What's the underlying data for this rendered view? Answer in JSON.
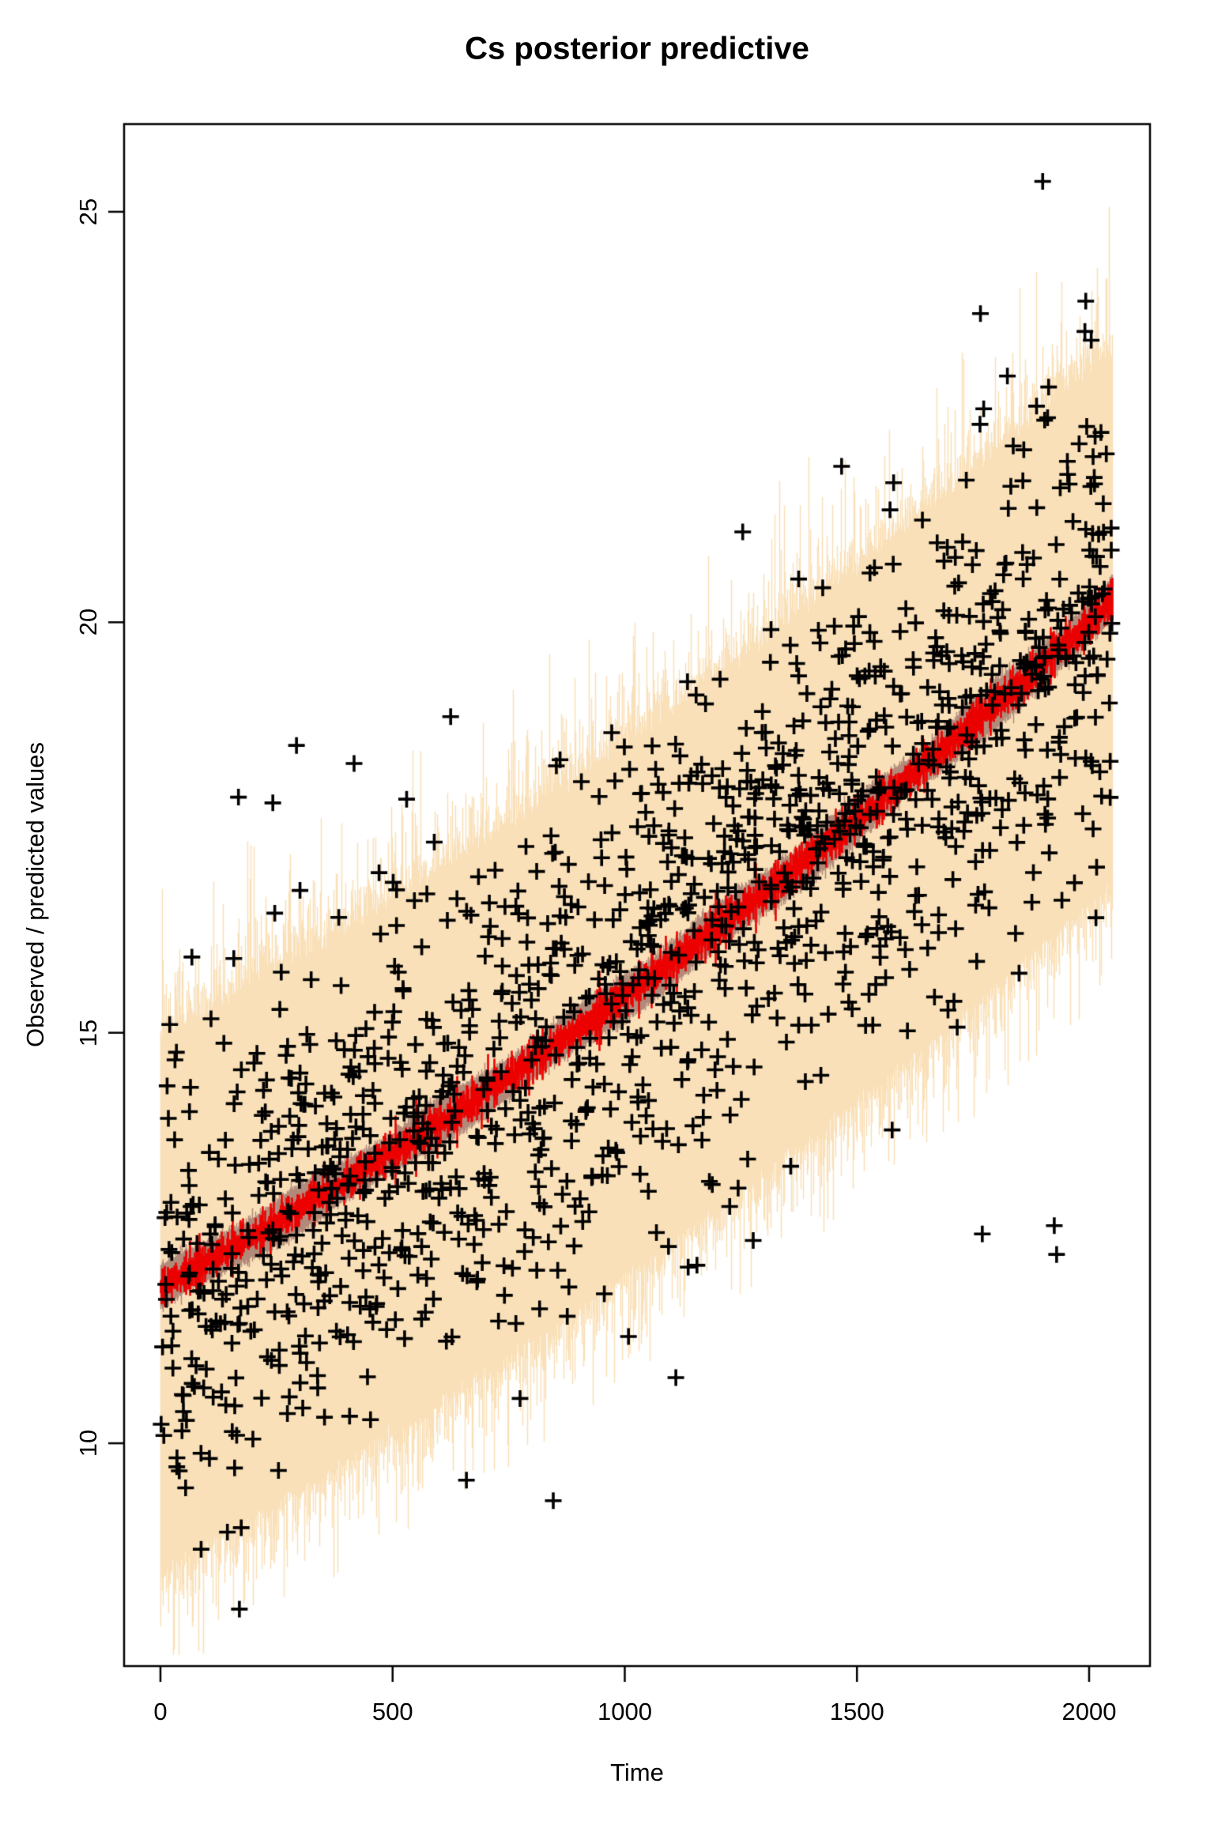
{
  "chart_data": {
    "type": "scatter",
    "title": "Cs posterior predictive",
    "xlabel": "Time",
    "ylabel": "Observed / predicted values",
    "x_ticks": [
      0,
      500,
      1000,
      1500,
      2000
    ],
    "y_ticks": [
      10,
      15,
      20,
      25
    ],
    "xlim": [
      -78.3,
      2131.1
    ],
    "ylim": [
      7.286,
      26.068
    ],
    "x_data_range": [
      0,
      2050
    ],
    "grid": false,
    "legend": null,
    "colors": {
      "background": "#FFFFFF",
      "frame": "#000000",
      "band_outer": "#F9E0B8",
      "band_inner": "#B18A7B",
      "center_line": "#EC0000",
      "marker": "#000000"
    },
    "series": [
      {
        "name": "predictive envelope min-max band",
        "type": "band",
        "color": "#F9E0B8",
        "upper_offset": 3.05,
        "lower_offset": -3.4,
        "fringe_scale": 0.3,
        "style": "vertical strands with ragged fringe"
      },
      {
        "name": "posterior sd band",
        "type": "band",
        "color": "#B18A7B",
        "halfwidth": 0.23
      },
      {
        "name": "posterior mean",
        "type": "line",
        "color": "#EC0000",
        "jitter": 0.1,
        "coef": {
          "a": 11.9,
          "b": 0.00305,
          "c": 5e-07
        },
        "points": [
          [
            0,
            11.9
          ],
          [
            250,
            12.69
          ],
          [
            500,
            13.55
          ],
          [
            750,
            14.47
          ],
          [
            1000,
            15.45
          ],
          [
            1250,
            16.49
          ],
          [
            1500,
            17.6
          ],
          [
            1750,
            18.77
          ],
          [
            2000,
            20.0
          ],
          [
            2050,
            20.25
          ]
        ]
      },
      {
        "name": "observed values",
        "type": "scatter",
        "marker": "+",
        "marker_px": 21,
        "marker_stroke_px": 3.6,
        "color": "#000000",
        "n": 1300,
        "x_range": [
          0,
          2050
        ],
        "noise_sd": 1.55,
        "seed": 77031,
        "outliers": [
          [
            1900,
            25.37
          ],
          [
            1766,
            23.76
          ],
          [
            1824,
            23.0
          ],
          [
            1773,
            22.6
          ],
          [
            1579,
            21.7
          ],
          [
            1467,
            21.9
          ],
          [
            1254,
            21.1
          ],
          [
            170,
            7.98
          ],
          [
            168,
            17.87
          ],
          [
            242,
            17.8
          ],
          [
            293,
            18.5
          ],
          [
            417,
            18.28
          ],
          [
            625,
            18.85
          ],
          [
            659,
            9.55
          ],
          [
            846,
            9.3
          ],
          [
            1008,
            11.3
          ],
          [
            1110,
            10.8
          ],
          [
            1770,
            12.55
          ],
          [
            1925,
            12.65
          ],
          [
            1930,
            12.3
          ]
        ]
      }
    ]
  }
}
